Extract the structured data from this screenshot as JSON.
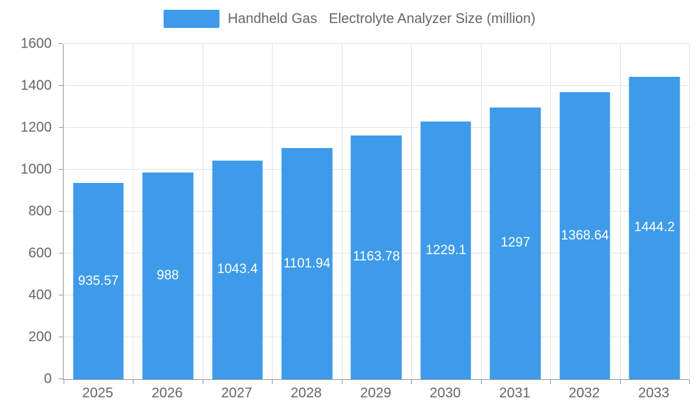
{
  "legend": {
    "label": "Handheld Gas   Electrolyte Analyzer Size (million)",
    "swatch_color": "#3d9be9"
  },
  "chart_data": {
    "type": "bar",
    "title": "Handheld Gas   Electrolyte Analyzer Size (million)",
    "categories": [
      "2025",
      "2026",
      "2027",
      "2028",
      "2029",
      "2030",
      "2031",
      "2032",
      "2033"
    ],
    "values": [
      935.57,
      988,
      1043.4,
      1101.94,
      1163.78,
      1229.1,
      1297,
      1368.64,
      1444.2
    ],
    "value_labels": [
      "935.57",
      "988",
      "1043.4",
      "1101.94",
      "1163.78",
      "1229.1",
      "1297",
      "1368.64",
      "1444.2"
    ],
    "xlabel": "",
    "ylabel": "",
    "ylim": [
      0,
      1600
    ],
    "ytick_step": 200,
    "yticks": [
      0,
      200,
      400,
      600,
      800,
      1000,
      1200,
      1400,
      1600
    ],
    "bar_color": "#3d9be9",
    "value_label_color": "#ffffff",
    "axis_label_color": "#666666",
    "grid": true,
    "legend_position": "top",
    "value_label_position": "inside-center"
  }
}
